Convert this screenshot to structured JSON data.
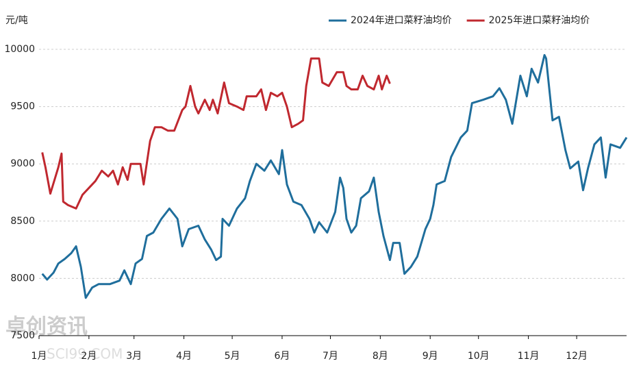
{
  "chart_data": {
    "type": "line",
    "y_label": "元/吨",
    "watermark": "卓创资讯",
    "watermark_sub": "SCI99.COM",
    "xlim": [
      1,
      366
    ],
    "xticks": [
      {
        "value": 1,
        "label": "1月"
      },
      {
        "value": 32,
        "label": "2月"
      },
      {
        "value": 60,
        "label": "3月"
      },
      {
        "value": 91,
        "label": "4月"
      },
      {
        "value": 121,
        "label": "5月"
      },
      {
        "value": 152,
        "label": "6月"
      },
      {
        "value": 182,
        "label": "7月"
      },
      {
        "value": 213,
        "label": "8月"
      },
      {
        "value": 244,
        "label": "9月"
      },
      {
        "value": 274,
        "label": "10月"
      },
      {
        "value": 305,
        "label": "11月"
      },
      {
        "value": 335,
        "label": "12月"
      }
    ],
    "ylim": [
      7500,
      10000
    ],
    "yticks": [
      7500,
      8000,
      8500,
      9000,
      9500,
      10000
    ],
    "grid": true,
    "legend": "top-right",
    "series": [
      {
        "name": "2024年进口菜籽油均价",
        "color": "#1f6e9c",
        "x": [
          3,
          6,
          10,
          13,
          17,
          21,
          24,
          27,
          30,
          34,
          38,
          45,
          51,
          54,
          58,
          61,
          65,
          68,
          72,
          77,
          82,
          87,
          90,
          94,
          100,
          104,
          108,
          111,
          114,
          115,
          119,
          124,
          129,
          132,
          136,
          141,
          145,
          150,
          152,
          155,
          159,
          164,
          169,
          172,
          175,
          180,
          185,
          188,
          190,
          192,
          195,
          198,
          201,
          206,
          209,
          212,
          215,
          219,
          221,
          225,
          228,
          232,
          236,
          241,
          244,
          246,
          248,
          253,
          257,
          263,
          267,
          270,
          277,
          283,
          287,
          291,
          295,
          300,
          304,
          307,
          311,
          315,
          316,
          320,
          324,
          328,
          331,
          336,
          339,
          342,
          346,
          350,
          353,
          356,
          362,
          366
        ],
        "values": [
          8040,
          7990,
          8050,
          8130,
          8170,
          8220,
          8280,
          8100,
          7830,
          7920,
          7950,
          7950,
          7980,
          8070,
          7950,
          8130,
          8170,
          8370,
          8400,
          8520,
          8610,
          8520,
          8280,
          8430,
          8460,
          8340,
          8250,
          8160,
          8190,
          8520,
          8460,
          8610,
          8700,
          8850,
          9000,
          8940,
          9030,
          8910,
          9120,
          8820,
          8670,
          8640,
          8520,
          8400,
          8490,
          8400,
          8580,
          8880,
          8790,
          8520,
          8400,
          8460,
          8700,
          8760,
          8880,
          8580,
          8370,
          8160,
          8310,
          8310,
          8040,
          8100,
          8190,
          8430,
          8520,
          8640,
          8820,
          8850,
          9060,
          9230,
          9290,
          9530,
          9560,
          9590,
          9660,
          9560,
          9350,
          9770,
          9590,
          9830,
          9710,
          9950,
          9920,
          9380,
          9410,
          9120,
          8960,
          9020,
          8770,
          8960,
          9170,
          9230,
          8880,
          9170,
          9140,
          9230
        ]
      },
      {
        "name": "2025年进口菜籽油均价",
        "color": "#c0282f",
        "x": [
          3,
          5,
          8,
          13,
          15,
          16,
          19,
          24,
          28,
          32,
          36,
          40,
          44,
          47,
          50,
          53,
          56,
          58,
          64,
          66,
          70,
          73,
          77,
          81,
          85,
          90,
          92,
          95,
          98,
          100,
          104,
          107,
          109,
          112,
          116,
          119,
          124,
          128,
          130,
          136,
          139,
          142,
          145,
          149,
          152,
          155,
          158,
          162,
          165,
          167,
          170,
          175,
          177,
          181,
          186,
          190,
          192,
          195,
          199,
          202,
          205,
          209,
          212,
          214,
          217,
          219
        ],
        "values": [
          9100,
          8970,
          8740,
          8970,
          9090,
          8670,
          8640,
          8610,
          8730,
          8790,
          8850,
          8940,
          8890,
          8940,
          8820,
          8970,
          8860,
          9000,
          9000,
          8820,
          9200,
          9320,
          9320,
          9290,
          9290,
          9470,
          9500,
          9680,
          9500,
          9440,
          9560,
          9470,
          9560,
          9440,
          9710,
          9530,
          9500,
          9470,
          9590,
          9590,
          9650,
          9470,
          9620,
          9590,
          9620,
          9500,
          9320,
          9350,
          9380,
          9680,
          9920,
          9920,
          9710,
          9680,
          9800,
          9800,
          9680,
          9650,
          9650,
          9770,
          9680,
          9650,
          9770,
          9650,
          9770,
          9700
        ]
      }
    ]
  }
}
